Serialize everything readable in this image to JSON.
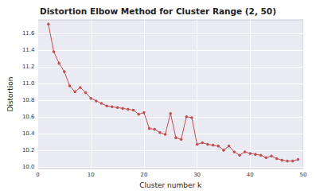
{
  "chart_data": {
    "type": "line",
    "title": "Distortion Elbow Method for Cluster Range (2, 50)",
    "x_label": "Cluster number k",
    "y_label": "Distortion",
    "x": [
      2,
      3,
      4,
      5,
      6,
      7,
      8,
      9,
      10,
      11,
      12,
      13,
      14,
      15,
      16,
      17,
      18,
      19,
      20,
      21,
      22,
      23,
      24,
      25,
      26,
      27,
      28,
      29,
      30,
      31,
      32,
      33,
      34,
      35,
      36,
      37,
      38,
      39,
      40,
      41,
      42,
      43,
      44,
      45,
      46,
      47,
      48,
      49
    ],
    "values": [
      11.71,
      11.38,
      11.24,
      11.14,
      10.97,
      10.9,
      10.95,
      10.89,
      10.82,
      10.79,
      10.76,
      10.73,
      10.72,
      10.71,
      10.7,
      10.69,
      10.68,
      10.63,
      10.65,
      10.46,
      10.45,
      10.41,
      10.39,
      10.64,
      10.35,
      10.33,
      10.6,
      10.59,
      10.27,
      10.29,
      10.27,
      10.26,
      10.25,
      10.2,
      10.25,
      10.18,
      10.14,
      10.18,
      10.16,
      10.15,
      10.14,
      10.11,
      10.13,
      10.1,
      10.08,
      10.07,
      10.07,
      10.09
    ],
    "color": "#c44e52",
    "marker": "o",
    "line_style": "solid",
    "xlim": [
      0,
      50
    ],
    "xticks": [
      0,
      10,
      20,
      30,
      40,
      50
    ],
    "ylim": [
      9.98,
      11.76
    ],
    "yticks": [
      {
        "value": 10,
        "label": "10.0"
      },
      10.2,
      10.4,
      10.6,
      10.8,
      {
        "value": 11,
        "label": "11.0"
      },
      11.2,
      11.4,
      11.6
    ],
    "grid": true
  }
}
